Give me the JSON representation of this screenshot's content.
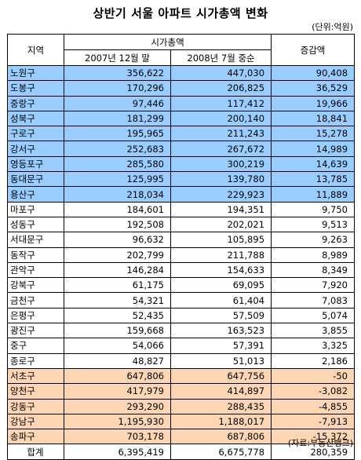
{
  "title": "상반기 서울 아파트 시가총액 변화",
  "unit": "(단위:억원)",
  "source": "(자료:부동산뱅크)",
  "headers": {
    "region": "지역",
    "market_cap": "시가총액",
    "col_2007": "2007년 12월 말",
    "col_2008": "2008년 7월 중순",
    "change": "증감액"
  },
  "rows": [
    {
      "region": "노원구",
      "v2007": "356,622",
      "v2008": "447,030",
      "change": "90,408",
      "group": "blue"
    },
    {
      "region": "도봉구",
      "v2007": "170,296",
      "v2008": "206,825",
      "change": "36,529",
      "group": "blue"
    },
    {
      "region": "중랑구",
      "v2007": "97,446",
      "v2008": "117,412",
      "change": "19,966",
      "group": "blue"
    },
    {
      "region": "성북구",
      "v2007": "181,299",
      "v2008": "200,140",
      "change": "18,841",
      "group": "blue"
    },
    {
      "region": "구로구",
      "v2007": "195,965",
      "v2008": "211,243",
      "change": "15,278",
      "group": "blue"
    },
    {
      "region": "강서구",
      "v2007": "252,683",
      "v2008": "267,672",
      "change": "14,989",
      "group": "blue"
    },
    {
      "region": "영등포구",
      "v2007": "285,580",
      "v2008": "300,219",
      "change": "14,639",
      "group": "blue"
    },
    {
      "region": "동대문구",
      "v2007": "125,995",
      "v2008": "139,780",
      "change": "13,785",
      "group": "blue"
    },
    {
      "region": "용산구",
      "v2007": "218,034",
      "v2008": "229,923",
      "change": "11,889",
      "group": "blue"
    },
    {
      "region": "마포구",
      "v2007": "184,601",
      "v2008": "194,351",
      "change": "9,750",
      "group": "white"
    },
    {
      "region": "성동구",
      "v2007": "192,508",
      "v2008": "202,021",
      "change": "9,513",
      "group": "white"
    },
    {
      "region": "서대문구",
      "v2007": "96,632",
      "v2008": "105,895",
      "change": "9,263",
      "group": "white"
    },
    {
      "region": "동작구",
      "v2007": "202,799",
      "v2008": "211,788",
      "change": "8,989",
      "group": "white"
    },
    {
      "region": "관악구",
      "v2007": "146,284",
      "v2008": "154,633",
      "change": "8,349",
      "group": "white"
    },
    {
      "region": "강북구",
      "v2007": "61,175",
      "v2008": "69,095",
      "change": "7,920",
      "group": "white"
    },
    {
      "region": "금천구",
      "v2007": "54,321",
      "v2008": "61,404",
      "change": "7,083",
      "group": "white"
    },
    {
      "region": "은평구",
      "v2007": "52,435",
      "v2008": "57,509",
      "change": "5,074",
      "group": "white"
    },
    {
      "region": "광진구",
      "v2007": "159,668",
      "v2008": "163,523",
      "change": "3,855",
      "group": "white"
    },
    {
      "region": "중구",
      "v2007": "54,066",
      "v2008": "57,391",
      "change": "3,325",
      "group": "white"
    },
    {
      "region": "종로구",
      "v2007": "48,827",
      "v2008": "51,013",
      "change": "2,186",
      "group": "white"
    },
    {
      "region": "서초구",
      "v2007": "647,806",
      "v2008": "647,756",
      "change": "-50",
      "group": "orange"
    },
    {
      "region": "양천구",
      "v2007": "417,979",
      "v2008": "414,897",
      "change": "-3,082",
      "group": "orange"
    },
    {
      "region": "강동구",
      "v2007": "293,290",
      "v2008": "288,435",
      "change": "-4,855",
      "group": "orange"
    },
    {
      "region": "강남구",
      "v2007": "1,195,930",
      "v2008": "1,188,017",
      "change": "-7,913",
      "group": "orange"
    },
    {
      "region": "송파구",
      "v2007": "703,178",
      "v2008": "687,806",
      "change": "-15,372",
      "group": "orange"
    },
    {
      "region": "합계",
      "v2007": "6,395,419",
      "v2008": "6,675,778",
      "change": "280,359",
      "group": "total"
    }
  ],
  "colors": {
    "blue": "#99ccff",
    "orange": "#fcd5b5",
    "white": "#ffffff"
  }
}
